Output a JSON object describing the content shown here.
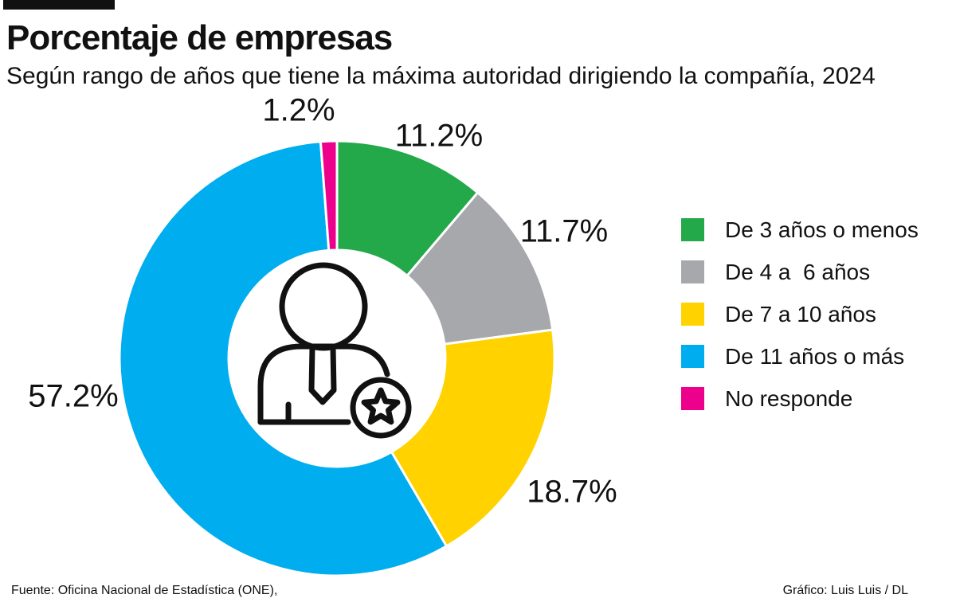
{
  "header": {
    "title": "Porcentaje de empresas",
    "subtitle": "Según rango de años que tiene la máxima autoridad dirigiendo la compañía, 2024"
  },
  "chart_data": {
    "type": "pie",
    "variant": "donut",
    "title": "Porcentaje de empresas",
    "subtitle": "Según rango de años que tiene la máxima autoridad dirigiendo la compañía, 2024",
    "categories": [
      "De 3 años o menos",
      "De 4 a  6 años",
      "De 7 a 10 años",
      "De 11 años o más",
      "No responde"
    ],
    "values": [
      11.2,
      11.7,
      18.7,
      57.2,
      1.2
    ],
    "value_labels": [
      "11.2%",
      "11.7%",
      "18.7%",
      "57.2%",
      "1.2%"
    ],
    "colors": [
      "#23a84a",
      "#a7a8ab",
      "#ffd200",
      "#00adef",
      "#ec008c"
    ],
    "center_icon": "person-star-icon",
    "legend_position": "right"
  },
  "footer": {
    "source": "Fuente:  Oficina Nacional de Estadística (ONE),",
    "credit": "Gráfico: Luis Luis / DL"
  }
}
